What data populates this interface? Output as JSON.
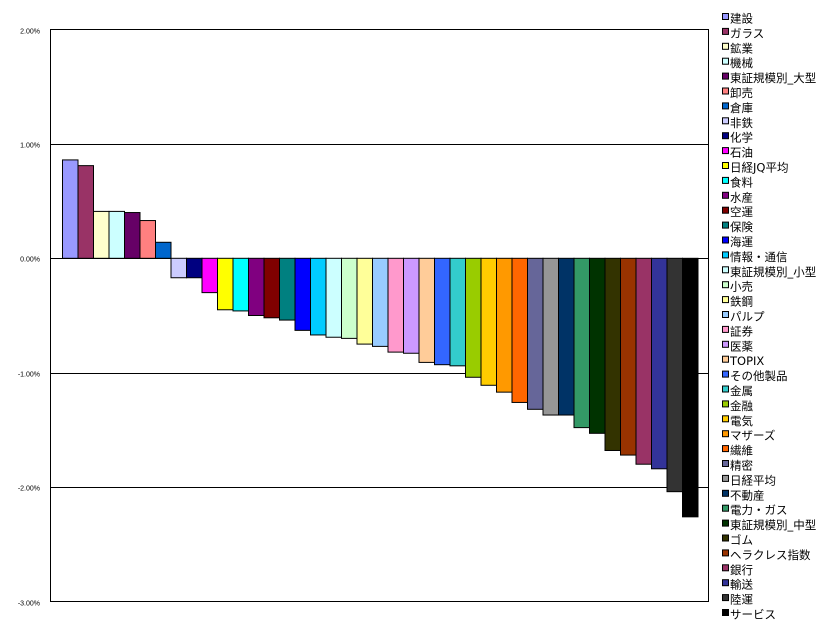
{
  "chart_data": {
    "type": "bar",
    "title": "",
    "xlabel": "",
    "ylabel": "",
    "ylim": [
      -3.0,
      2.0
    ],
    "yticks": [
      "2.00%",
      "1.00%",
      "0.00%",
      "-1.00%",
      "-2.00%",
      "-3.00%"
    ],
    "ytick_values": [
      2,
      1,
      0,
      -1,
      -2,
      -3
    ],
    "grid": "horizontal major gridlines",
    "legend_position": "right",
    "categories": [
      "建設",
      "ガラス",
      "鉱業",
      "機械",
      "東証規模別_大型",
      "卸売",
      "倉庫",
      "非鉄",
      "化学",
      "石油",
      "日経JQ平均",
      "食料",
      "水産",
      "空運",
      "保険",
      "海運",
      "情報・通信",
      "東証規模別_小型",
      "小売",
      "鉄鋼",
      "パルプ",
      "証券",
      "医薬",
      "TOPIX",
      "その他製品",
      "金属",
      "金融",
      "電気",
      "マザーズ",
      "繊維",
      "精密",
      "日経平均",
      "不動産",
      "電力・ガス",
      "東証規模別_中型",
      "ゴム",
      "ヘラクレス指数",
      "銀行",
      "輸送",
      "陸運",
      "サービス"
    ],
    "values": [
      0.86,
      0.81,
      0.41,
      0.41,
      0.4,
      0.33,
      0.14,
      -0.17,
      -0.17,
      -0.3,
      -0.45,
      -0.46,
      -0.5,
      -0.52,
      -0.54,
      -0.63,
      -0.67,
      -0.69,
      -0.7,
      -0.75,
      -0.77,
      -0.82,
      -0.83,
      -0.91,
      -0.93,
      -0.94,
      -1.04,
      -1.11,
      -1.17,
      -1.26,
      -1.32,
      -1.37,
      -1.37,
      -1.48,
      -1.53,
      -1.68,
      -1.72,
      -1.8,
      -1.84,
      -2.04,
      -2.26
    ],
    "colors": [
      "#9999ff",
      "#993366",
      "#ffffcc",
      "#ccffff",
      "#660066",
      "#ff8080",
      "#0066cc",
      "#ccccff",
      "#000080",
      "#ff00ff",
      "#ffff00",
      "#00ffff",
      "#800080",
      "#800000",
      "#008080",
      "#0000ff",
      "#00ccff",
      "#ccffff",
      "#ccffcc",
      "#ffff99",
      "#99ccff",
      "#ff99cc",
      "#cc99ff",
      "#ffcc99",
      "#3366ff",
      "#33cccc",
      "#99cc00",
      "#ffcc00",
      "#ff9900",
      "#ff6600",
      "#666699",
      "#969696",
      "#003366",
      "#339966",
      "#003300",
      "#333300",
      "#993300",
      "#993366",
      "#333399",
      "#333333",
      "#000000"
    ]
  }
}
